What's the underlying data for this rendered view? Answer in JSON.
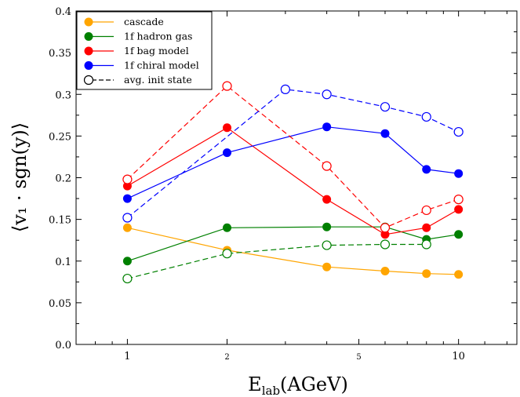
{
  "chart_data": {
    "type": "line",
    "title": "",
    "xlabel": "E",
    "xlabel_sub": "lab",
    "xlabel_unit": "(AGeV)",
    "ylabel": "⟨v₁ · sgn(y)⟩",
    "x_scale": "log",
    "xlim": [
      0.7,
      15
    ],
    "ylim": [
      0,
      0.4
    ],
    "grid": false,
    "legend_position": "top-left",
    "x_ticks": [
      {
        "value": 1,
        "label": "1",
        "size": "large"
      },
      {
        "value": 2,
        "label": "2",
        "size": "small"
      },
      {
        "value": 5,
        "label": "5",
        "size": "small"
      },
      {
        "value": 10,
        "label": "10",
        "size": "large"
      }
    ],
    "y_ticks": [
      {
        "value": 0,
        "label": "0.0"
      },
      {
        "value": 0.05,
        "label": "0.05"
      },
      {
        "value": 0.1,
        "label": "0.1"
      },
      {
        "value": 0.15,
        "label": "0.15"
      },
      {
        "value": 0.2,
        "label": "0.2"
      },
      {
        "value": 0.25,
        "label": "0.25"
      },
      {
        "value": 0.3,
        "label": "0.3"
      },
      {
        "value": 0.35,
        "label": "0.35"
      },
      {
        "value": 0.4,
        "label": "0.4"
      }
    ],
    "series": [
      {
        "name": "cascade",
        "color": "#FFA500",
        "marker": "filled",
        "dash": "solid",
        "x": [
          1,
          2,
          4,
          6,
          8,
          10
        ],
        "y": [
          0.14,
          0.113,
          0.093,
          0.088,
          0.085,
          0.084
        ]
      },
      {
        "name": "1f hadron gas",
        "color": "#008000",
        "marker": "filled",
        "dash": "solid",
        "x": [
          1,
          2,
          4,
          6,
          8,
          10
        ],
        "y": [
          0.1,
          0.14,
          0.141,
          0.141,
          0.126,
          0.132
        ]
      },
      {
        "name": "1f bag model",
        "color": "#FF0000",
        "marker": "filled",
        "dash": "solid",
        "x": [
          1,
          2,
          4,
          6,
          8,
          10
        ],
        "y": [
          0.19,
          0.26,
          0.174,
          0.132,
          0.14,
          0.162
        ]
      },
      {
        "name": "1f chiral model",
        "color": "#0000FF",
        "marker": "filled",
        "dash": "solid",
        "x": [
          1,
          2,
          4,
          6,
          8,
          10
        ],
        "y": [
          0.175,
          0.23,
          0.261,
          0.253,
          0.21,
          0.205
        ]
      },
      {
        "name": "",
        "color": "#FF0000",
        "marker": "open",
        "dash": "dashed",
        "x": [
          1,
          2,
          4,
          6,
          8,
          10
        ],
        "y": [
          0.198,
          0.31,
          0.214,
          0.14,
          0.161,
          0.174
        ]
      },
      {
        "name": "",
        "color": "#0000FF",
        "marker": "open",
        "dash": "dashed",
        "x": [
          1,
          3,
          4,
          6,
          8,
          10
        ],
        "y": [
          0.152,
          0.306,
          0.3,
          0.285,
          0.273,
          0.255
        ]
      },
      {
        "name": "",
        "color": "#008000",
        "marker": "open",
        "dash": "dashed",
        "x": [
          1,
          2,
          4,
          6,
          8
        ],
        "y": [
          0.079,
          0.109,
          0.119,
          0.12,
          0.12
        ]
      }
    ],
    "legend": [
      {
        "label": "cascade",
        "color": "#FFA500",
        "marker": "filled",
        "dash": "solid"
      },
      {
        "label": "1f hadron gas",
        "color": "#008000",
        "marker": "filled",
        "dash": "solid"
      },
      {
        "label": "1f bag model",
        "color": "#FF0000",
        "marker": "filled",
        "dash": "solid"
      },
      {
        "label": "1f chiral model",
        "color": "#0000FF",
        "marker": "filled",
        "dash": "solid"
      },
      {
        "label": "avg. init state",
        "color": "#000000",
        "marker": "open",
        "dash": "dashed"
      }
    ]
  }
}
